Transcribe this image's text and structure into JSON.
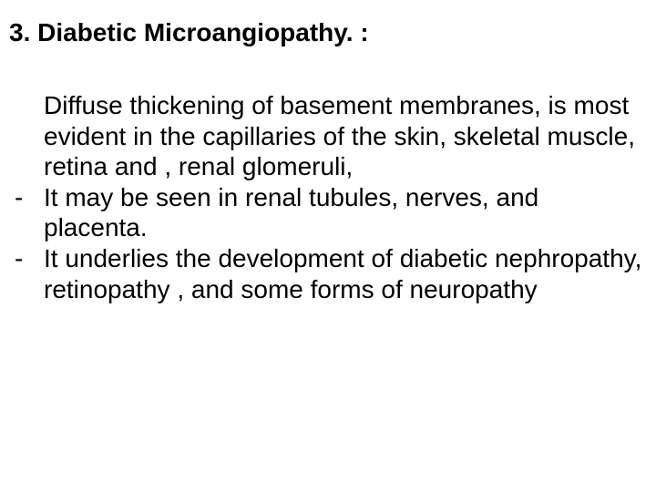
{
  "slide": {
    "background_color": "#ffffff",
    "text_color": "#000000",
    "font_family": "Arial",
    "title_fontsize": 28,
    "body_fontsize": 28,
    "title": "3. Diabetic Microangiopathy. :",
    "paragraph": "Diffuse thickening of basement membranes, is most evident in the capillaries of the skin, skeletal muscle, retina and , renal glomeruli,",
    "bullets": [
      "It may be seen in renal tubules,  nerves, and placenta.",
      "It underlies the development of diabetic nephropathy, retinopathy , and some forms of neuropathy"
    ],
    "dash": "-"
  }
}
